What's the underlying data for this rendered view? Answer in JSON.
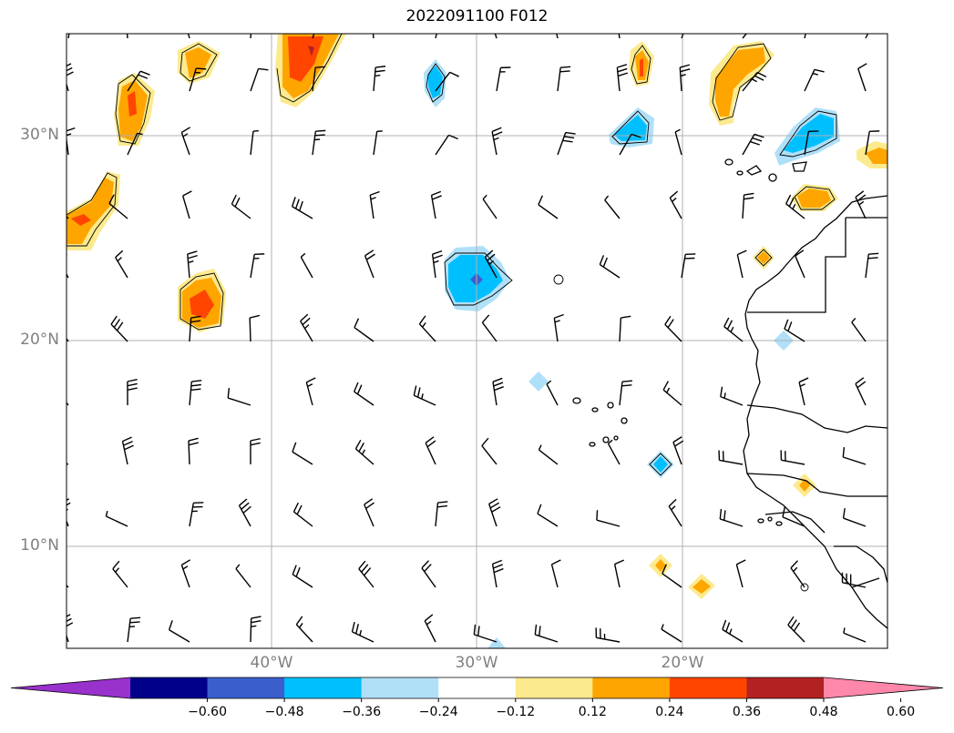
{
  "title": "2022091100 F012",
  "map": {
    "lat_labels": [
      "30°N",
      "20°N",
      "10°N"
    ],
    "lon_labels": [
      "40°W",
      "30°W",
      "20°W"
    ],
    "gridlines": true
  },
  "colorbar": {
    "ticks": [
      "−0.60",
      "−0.48",
      "−0.36",
      "−0.24",
      "−0.12",
      "0.12",
      "0.24",
      "0.36",
      "0.48",
      "0.60"
    ],
    "colors": [
      "#9932cc",
      "#00008b",
      "#3a5fcd",
      "#00bfff",
      "#b0e0f8",
      "#ffffff",
      "#fcea8f",
      "#ffa500",
      "#ff4500",
      "#b22222",
      "#ff88aa"
    ],
    "extend": "both"
  },
  "colors": {
    "land_outline": "#000000",
    "gridline": "#b0b0b0",
    "label": "#808080"
  }
}
